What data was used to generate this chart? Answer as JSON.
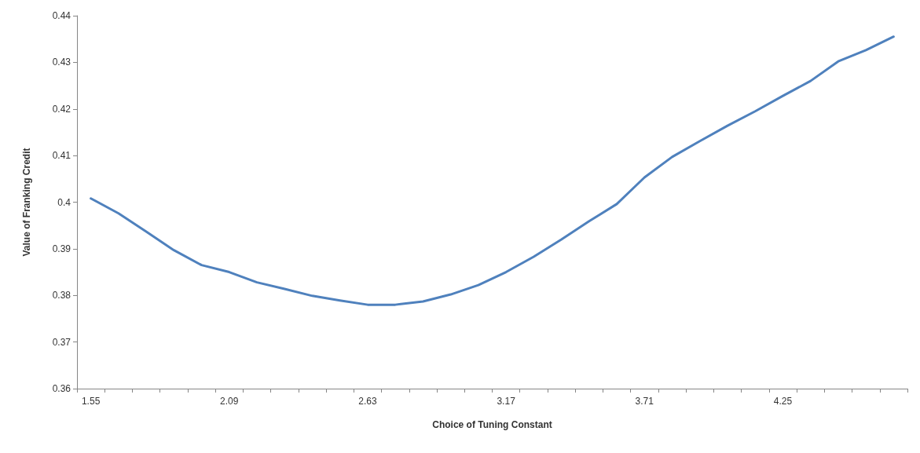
{
  "chart_data": {
    "type": "line",
    "xlabel": "Choice of Tuning Constant",
    "ylabel": "Value of Franking Credit",
    "categories": [
      "1.55",
      null,
      null,
      null,
      null,
      "2.09",
      null,
      null,
      null,
      null,
      "2.63",
      null,
      null,
      null,
      null,
      "3.17",
      null,
      null,
      null,
      null,
      "3.71",
      null,
      null,
      null,
      null,
      "4.25",
      null,
      null,
      null,
      null
    ],
    "series": [
      {
        "color": "#4f81bd",
        "values": [
          0.4008,
          0.3976,
          0.3937,
          0.3897,
          0.3865,
          0.385,
          0.3828,
          0.3814,
          0.3799,
          0.3789,
          0.378,
          0.378,
          0.3787,
          0.3802,
          0.3822,
          0.385,
          0.3883,
          0.392,
          0.3959,
          0.3996,
          0.4053,
          0.4097,
          0.4131,
          0.4164,
          0.4195,
          0.4228,
          0.426,
          0.4302,
          0.4326,
          0.4355
        ]
      }
    ],
    "ylim": [
      0.36,
      0.44
    ],
    "yticks": [
      0.36,
      0.37,
      0.38,
      0.39,
      0.4,
      0.41,
      0.42,
      0.43,
      0.44
    ],
    "grid": false,
    "marker": "none",
    "line_style": "solid"
  }
}
